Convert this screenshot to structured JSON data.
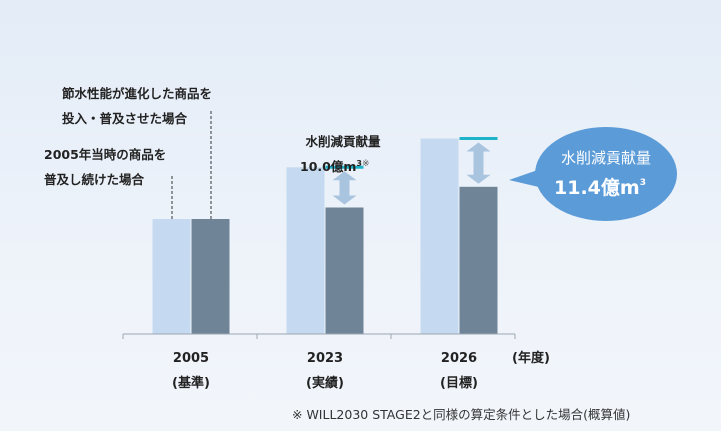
{
  "chart_data": {
    "type": "bar",
    "categories": [
      "2005",
      "2023",
      "2026"
    ],
    "category_sublabels": [
      "(基準)",
      "(実績)",
      "(目標)"
    ],
    "x_unit_label": "(年度)",
    "series": [
      {
        "name": "2005年当時の商品を普及し続けた場合",
        "values": [
          100,
          145,
          170
        ],
        "color": "#c5daf0"
      },
      {
        "name": "節水性能が進化した商品を投入・普及させた場合",
        "values": [
          100,
          110,
          128
        ],
        "color": "#6f8497"
      }
    ],
    "ylim": [
      0,
      200
    ],
    "grid": false,
    "legend_labels": {
      "series1_line1": "2005年当時の商品を",
      "series1_line2": "普及し続けた場合",
      "series2_line1": "節水性能が進化した商品を",
      "series2_line2": "投入・普及させた場合"
    },
    "annotations": {
      "reduction_2023_line1": "水削減貢献量",
      "reduction_2023_value": "10.0億m",
      "reduction_2023_sup": "3",
      "reduction_2023_note_mark": "※",
      "bubble_line1": "水削減貢献量",
      "bubble_value": "11.4億m",
      "bubble_sup": "3"
    },
    "footnote": "※ WILL2030 STAGE2と同様の算定条件とした場合(概算値)"
  },
  "colors": {
    "accent_line": "#1fb3c9",
    "arrow": "#a9c4df",
    "bubble": "#5b9bd8",
    "axis": "#9aa7b4"
  }
}
